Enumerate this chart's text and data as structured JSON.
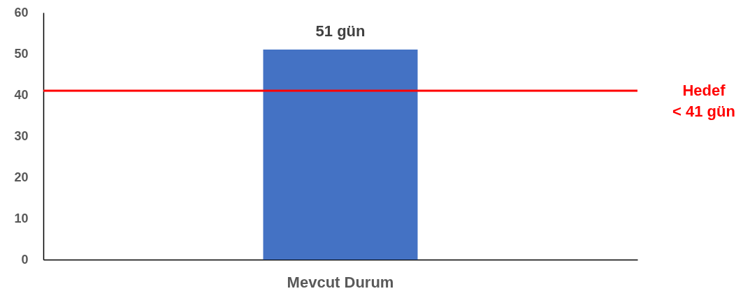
{
  "chart_data": {
    "type": "bar",
    "categories": [
      "Mevcut Durum"
    ],
    "values": [
      51
    ],
    "value_labels": [
      "51 gün"
    ],
    "color": "#4472c4",
    "ylim": [
      0,
      60
    ],
    "yticks": [
      0,
      10,
      20,
      30,
      40,
      50,
      60
    ],
    "grid": false,
    "ref_lines": [
      {
        "axis": "y",
        "value": 41,
        "label": "Hedef\n< 41 gün",
        "color": "#ff0000"
      }
    ]
  }
}
